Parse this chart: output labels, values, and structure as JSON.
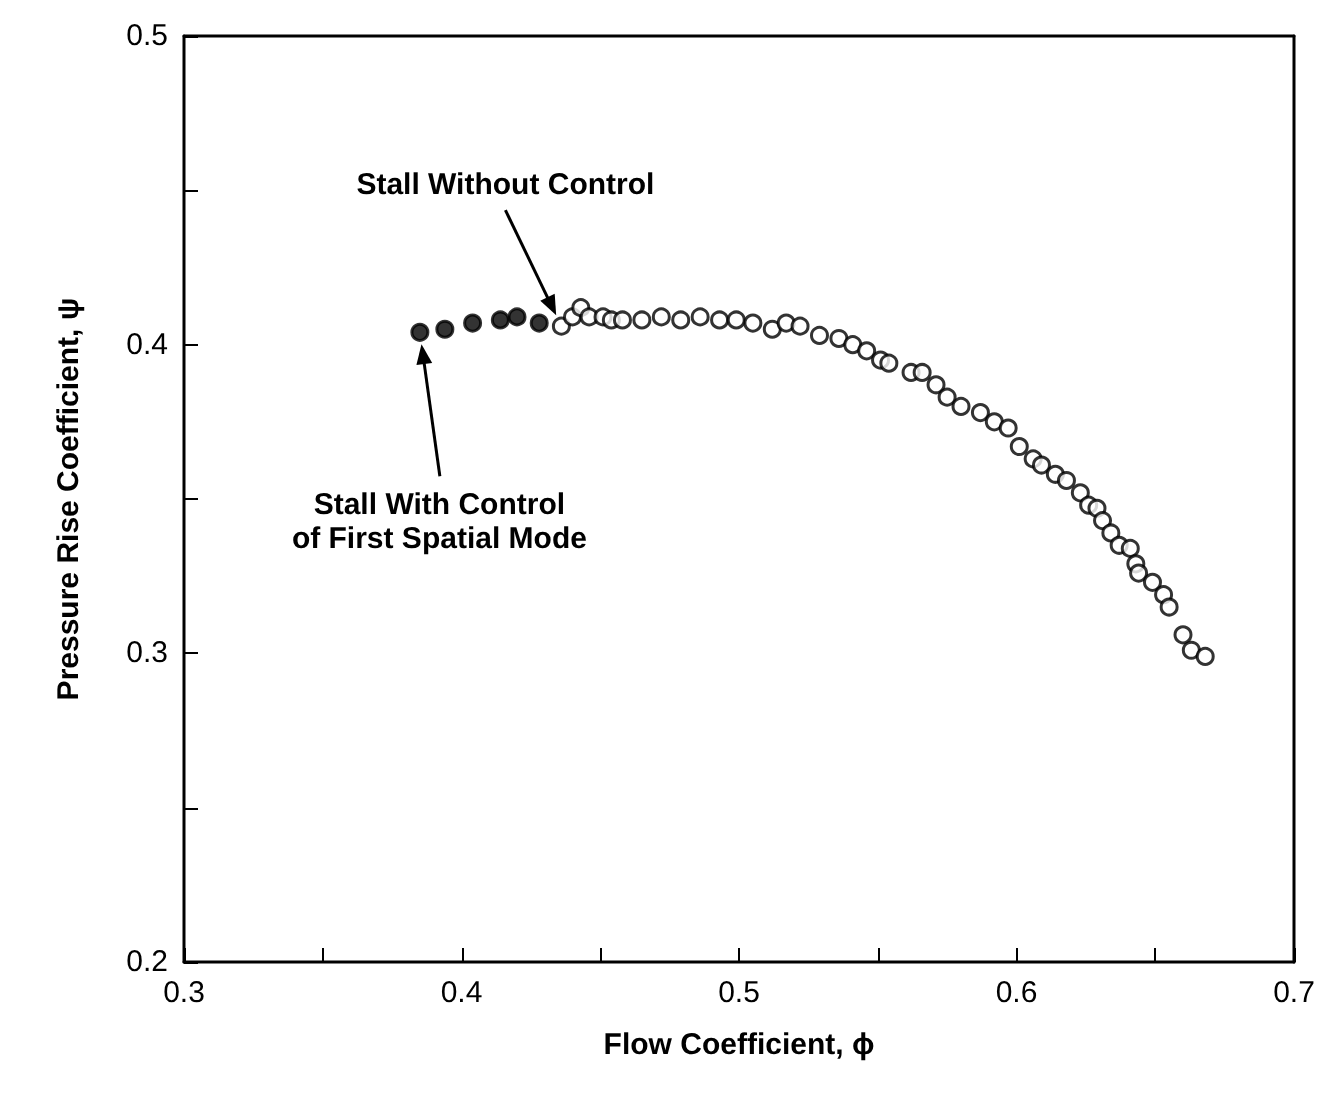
{
  "chart_data": {
    "type": "scatter",
    "xlabel": "Flow Coefficient, ϕ",
    "ylabel": "Pressure Rise Coefficient, ψ",
    "xlim": [
      0.3,
      0.7
    ],
    "ylim": [
      0.2,
      0.5
    ],
    "xticks": [
      0.3,
      {
        "value": 0.35,
        "label": null
      },
      0.4,
      {
        "value": 0.45,
        "label": null
      },
      0.5,
      {
        "value": 0.55,
        "label": null
      },
      0.6,
      {
        "value": 0.65,
        "label": null
      },
      0.7
    ],
    "yticks": [
      0.2,
      {
        "value": 0.25,
        "label": null
      },
      0.3,
      {
        "value": 0.35,
        "label": null
      },
      0.4,
      {
        "value": 0.45,
        "label": null
      },
      0.5
    ],
    "grid": false,
    "marker": "circle",
    "annotations": [
      "Stall Without Control",
      "Stall With Control\nof First Spatial Mode"
    ],
    "series": [
      {
        "color": "#000000",
        "x": [
          0.385,
          0.394,
          0.404,
          0.414,
          0.42,
          0.428
        ],
        "values": [
          0.404,
          0.405,
          0.407,
          0.408,
          0.409,
          0.407
        ]
      },
      {
        "color": "#000000",
        "x": [
          0.436,
          0.44,
          0.443,
          0.446,
          0.451,
          0.454,
          0.458,
          0.465,
          0.472,
          0.479,
          0.486,
          0.493,
          0.499,
          0.505,
          0.512,
          0.517,
          0.522,
          0.529,
          0.536,
          0.541,
          0.546,
          0.551,
          0.554,
          0.562,
          0.566,
          0.571,
          0.575,
          0.58,
          0.587,
          0.592,
          0.597,
          0.601,
          0.606,
          0.609,
          0.614,
          0.618,
          0.623,
          0.626,
          0.629,
          0.631,
          0.634,
          0.637,
          0.641,
          0.643,
          0.644,
          0.649,
          0.653,
          0.655,
          0.66,
          0.663,
          0.668
        ],
        "values": [
          0.406,
          0.409,
          0.412,
          0.409,
          0.409,
          0.408,
          0.408,
          0.408,
          0.409,
          0.408,
          0.409,
          0.408,
          0.408,
          0.407,
          0.405,
          0.407,
          0.406,
          0.403,
          0.402,
          0.4,
          0.398,
          0.395,
          0.394,
          0.391,
          0.391,
          0.387,
          0.383,
          0.38,
          0.378,
          0.375,
          0.373,
          0.367,
          0.363,
          0.361,
          0.358,
          0.356,
          0.352,
          0.348,
          0.347,
          0.343,
          0.339,
          0.335,
          0.334,
          0.329,
          0.326,
          0.323,
          0.319,
          0.315,
          0.306,
          0.301,
          0.299
        ]
      }
    ]
  }
}
